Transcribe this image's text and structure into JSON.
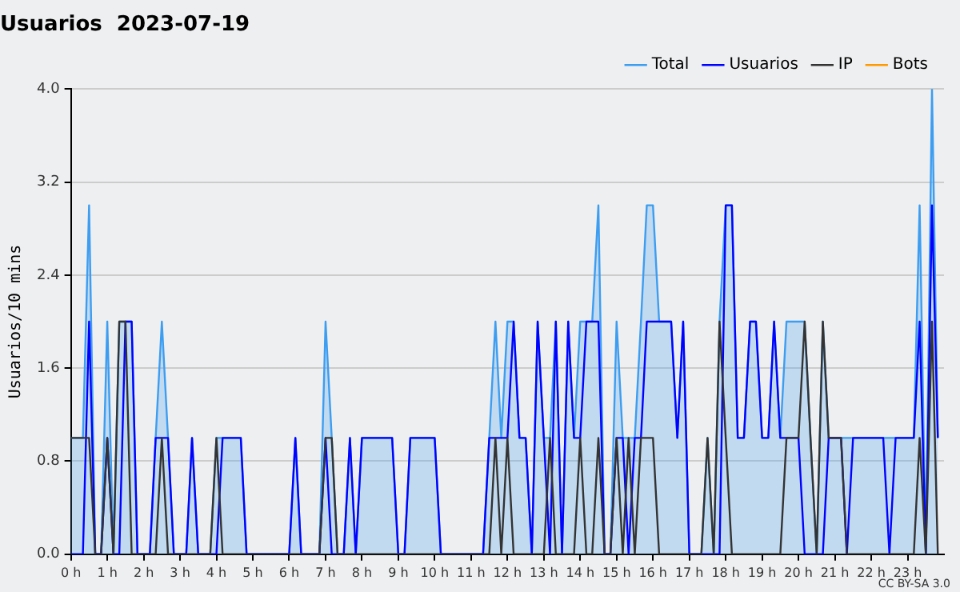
{
  "chart_data": {
    "type": "line",
    "title": "Usuarios  2023-07-19",
    "ylabel": "Usuarios/10 mins",
    "x": [
      0,
      0.17,
      0.33,
      0.5,
      0.67,
      0.83,
      1,
      1.17,
      1.33,
      1.5,
      1.67,
      1.83,
      2,
      2.17,
      2.33,
      2.5,
      2.67,
      2.83,
      3,
      3.17,
      3.33,
      3.5,
      3.67,
      3.83,
      4,
      4.17,
      4.33,
      4.5,
      4.67,
      4.83,
      5,
      5.17,
      5.33,
      5.5,
      5.67,
      5.83,
      6,
      6.17,
      6.33,
      6.5,
      6.67,
      6.83,
      7,
      7.17,
      7.33,
      7.5,
      7.67,
      7.83,
      8,
      8.17,
      8.33,
      8.5,
      8.67,
      8.83,
      9,
      9.17,
      9.33,
      9.5,
      9.67,
      9.83,
      10,
      10.17,
      10.33,
      10.5,
      10.67,
      10.83,
      11,
      11.17,
      11.33,
      11.5,
      11.67,
      11.83,
      12,
      12.17,
      12.33,
      12.5,
      12.67,
      12.83,
      13,
      13.17,
      13.33,
      13.5,
      13.67,
      13.83,
      14,
      14.17,
      14.33,
      14.5,
      14.67,
      14.83,
      15,
      15.17,
      15.33,
      15.5,
      15.67,
      15.83,
      16,
      16.17,
      16.33,
      16.5,
      16.67,
      16.83,
      17,
      17.17,
      17.33,
      17.5,
      17.67,
      17.83,
      18,
      18.17,
      18.33,
      18.5,
      18.67,
      18.83,
      19,
      19.17,
      19.33,
      19.5,
      19.67,
      19.83,
      20,
      20.17,
      20.33,
      20.5,
      20.67,
      20.83,
      21,
      21.17,
      21.33,
      21.5,
      21.67,
      21.83,
      22,
      22.17,
      22.33,
      22.5,
      22.67,
      22.83,
      23,
      23.17,
      23.33,
      23.5,
      23.67,
      23.83
    ],
    "series": [
      {
        "name": "Total",
        "type": "area",
        "color": "#3d9df0",
        "values": [
          1,
          1,
          1,
          3,
          0,
          0,
          2,
          0,
          2,
          2,
          2,
          0,
          0,
          0,
          1,
          2,
          1,
          0,
          0,
          0,
          1,
          0,
          0,
          0,
          1,
          1,
          1,
          1,
          1,
          0,
          0,
          0,
          0,
          0,
          0,
          0,
          0,
          1,
          0,
          0,
          0,
          0,
          2,
          1,
          0,
          0,
          1,
          0,
          1,
          1,
          1,
          1,
          1,
          1,
          0,
          0,
          1,
          1,
          1,
          1,
          1,
          0,
          0,
          0,
          0,
          0,
          0,
          0,
          0,
          1,
          2,
          1,
          2,
          2,
          1,
          1,
          0,
          2,
          1,
          1,
          2,
          0,
          2,
          1,
          2,
          2,
          2,
          3,
          0,
          0,
          2,
          1,
          1,
          1,
          2,
          3,
          3,
          2,
          2,
          2,
          1,
          2,
          0,
          0,
          0,
          1,
          0,
          2,
          3,
          3,
          1,
          1,
          2,
          2,
          1,
          1,
          2,
          1,
          2,
          2,
          2,
          2,
          1,
          0,
          2,
          1,
          1,
          1,
          1,
          1,
          1,
          1,
          1,
          1,
          1,
          1,
          1,
          1,
          1,
          1,
          3,
          0,
          4,
          1
        ]
      },
      {
        "name": "Usuarios",
        "color": "#0000ff",
        "values": [
          0,
          0,
          0,
          2,
          0,
          0,
          1,
          0,
          0,
          2,
          2,
          0,
          0,
          0,
          1,
          1,
          1,
          0,
          0,
          0,
          1,
          0,
          0,
          0,
          0,
          1,
          1,
          1,
          1,
          0,
          0,
          0,
          0,
          0,
          0,
          0,
          0,
          1,
          0,
          0,
          0,
          0,
          1,
          0,
          0,
          0,
          1,
          0,
          1,
          1,
          1,
          1,
          1,
          1,
          0,
          0,
          1,
          1,
          1,
          1,
          1,
          0,
          0,
          0,
          0,
          0,
          0,
          0,
          0,
          1,
          1,
          1,
          1,
          2,
          1,
          1,
          0,
          2,
          1,
          0,
          2,
          0,
          2,
          1,
          1,
          2,
          2,
          2,
          0,
          0,
          1,
          1,
          0,
          1,
          1,
          2,
          2,
          2,
          2,
          2,
          1,
          2,
          0,
          0,
          0,
          0,
          0,
          0,
          3,
          3,
          1,
          1,
          2,
          2,
          1,
          1,
          2,
          1,
          1,
          1,
          1,
          0,
          0,
          0,
          0,
          1,
          1,
          1,
          0,
          1,
          1,
          1,
          1,
          1,
          1,
          0,
          1,
          1,
          1,
          1,
          2,
          0,
          3,
          1
        ]
      },
      {
        "name": "IP",
        "color": "#333333",
        "values": [
          1,
          1,
          1,
          1,
          0,
          0,
          1,
          0,
          2,
          2,
          0,
          0,
          0,
          0,
          0,
          1,
          0,
          0,
          0,
          0,
          0,
          0,
          0,
          0,
          1,
          0,
          0,
          0,
          0,
          0,
          0,
          0,
          0,
          0,
          0,
          0,
          0,
          0,
          0,
          0,
          0,
          0,
          1,
          1,
          0,
          0,
          0,
          0,
          0,
          0,
          0,
          0,
          0,
          0,
          0,
          0,
          0,
          0,
          0,
          0,
          0,
          0,
          0,
          0,
          0,
          0,
          0,
          0,
          0,
          0,
          1,
          0,
          1,
          0,
          0,
          0,
          0,
          0,
          0,
          1,
          0,
          0,
          0,
          0,
          1,
          0,
          0,
          1,
          0,
          0,
          1,
          0,
          1,
          0,
          1,
          1,
          1,
          0,
          0,
          0,
          0,
          0,
          0,
          0,
          0,
          1,
          0,
          2,
          1,
          0,
          0,
          0,
          0,
          0,
          0,
          0,
          0,
          0,
          1,
          1,
          1,
          2,
          1,
          0,
          2,
          1,
          1,
          1,
          0,
          0,
          0,
          0,
          0,
          0,
          0,
          0,
          0,
          0,
          0,
          0,
          1,
          0,
          2,
          0
        ]
      },
      {
        "name": "Bots",
        "color": "#ff9900",
        "values": [
          null,
          null,
          null,
          null,
          null,
          null,
          null,
          null,
          null,
          null,
          null,
          null,
          null,
          null,
          null,
          null,
          null,
          null,
          null,
          null,
          null,
          null,
          null,
          null,
          null,
          null,
          null,
          null,
          null,
          null,
          null,
          null,
          null,
          null,
          null,
          null,
          null,
          null,
          null,
          null,
          null,
          null,
          null,
          null,
          null,
          null,
          null,
          null,
          null,
          null,
          null,
          null,
          null,
          null,
          null,
          null,
          null,
          null,
          null,
          null,
          null,
          null,
          null,
          null,
          null,
          null,
          null,
          null,
          null,
          null,
          null,
          null,
          null,
          null,
          null,
          null,
          null,
          null,
          null,
          null,
          null,
          null,
          null,
          null,
          null,
          null,
          null,
          null,
          null,
          null,
          null,
          null,
          null,
          null,
          null,
          null,
          null,
          null,
          null,
          null,
          null,
          null,
          null,
          null,
          null,
          null,
          null,
          null,
          null,
          null,
          null,
          null,
          null,
          null,
          null,
          null,
          null,
          null,
          null,
          null,
          null,
          null,
          null,
          null,
          null,
          null,
          null,
          null,
          null,
          null,
          null,
          null,
          null,
          null,
          null,
          null,
          null,
          null,
          null,
          null,
          null,
          null,
          null,
          null
        ]
      }
    ],
    "xlim": [
      0,
      24
    ],
    "xticks": [
      {
        "value": 0,
        "label": "0 h"
      },
      {
        "value": 1,
        "label": "1 h"
      },
      {
        "value": 2,
        "label": "2 h"
      },
      {
        "value": 3,
        "label": "3 h"
      },
      {
        "value": 4,
        "label": "4 h"
      },
      {
        "value": 5,
        "label": "5 h"
      },
      {
        "value": 6,
        "label": "6 h"
      },
      {
        "value": 7,
        "label": "7 h"
      },
      {
        "value": 8,
        "label": "8 h"
      },
      {
        "value": 9,
        "label": "9 h"
      },
      {
        "value": 10,
        "label": "10 h"
      },
      {
        "value": 11,
        "label": "11 h"
      },
      {
        "value": 12,
        "label": "12 h"
      },
      {
        "value": 13,
        "label": "13 h"
      },
      {
        "value": 14,
        "label": "14 h"
      },
      {
        "value": 15,
        "label": "15 h"
      },
      {
        "value": 16,
        "label": "16 h"
      },
      {
        "value": 17,
        "label": "17 h"
      },
      {
        "value": 18,
        "label": "18 h"
      },
      {
        "value": 19,
        "label": "19 h"
      },
      {
        "value": 20,
        "label": "20 h"
      },
      {
        "value": 21,
        "label": "21 h"
      },
      {
        "value": 22,
        "label": "22 h"
      },
      {
        "value": 23,
        "label": "23 h"
      }
    ],
    "ylim": [
      0,
      4
    ],
    "yticks": [
      {
        "value": 0,
        "label": "0.0"
      },
      0.8,
      1.6,
      2.4,
      3.2,
      {
        "value": 4,
        "label": "4.0"
      }
    ],
    "grid": "y",
    "legend": "top right",
    "marker": "none",
    "line_style": "solid",
    "annotations": [
      "CC BY-SA 3.0"
    ]
  }
}
